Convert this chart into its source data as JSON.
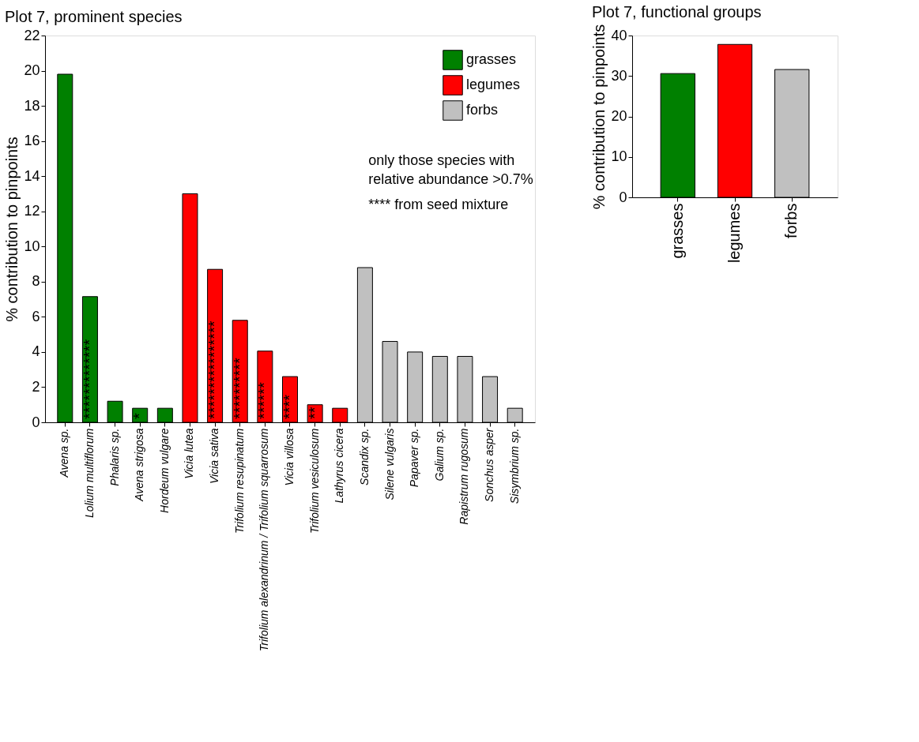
{
  "chart_data": [
    {
      "type": "bar",
      "title": "Plot 7, prominent species",
      "ylabel": "% contribution to pinpoints",
      "categories": [
        "Avena sp.",
        "Lolium multiflorum",
        "Phalaris sp.",
        "Avena strigosa",
        "Hordeum vulgare",
        "Vicia lutea",
        "Vicia sativa",
        "Trifolium resupinatum",
        "Trifolium alexandrinum / Trifolium squarrosum",
        "Vicia villosa",
        "Trifolium vesiculosum",
        "Lathyrus cicera",
        "Scandix sp.",
        "Silene vulgaris",
        "Papaver sp.",
        "Galium sp.",
        "Rapistrum rugosum",
        "Sonchus asper",
        "Sisymbrium sp."
      ],
      "series": [
        {
          "name": "grasses",
          "color": "#008000",
          "values": [
            19.8,
            7.15,
            1.2,
            0.8,
            0.8,
            null,
            null,
            null,
            null,
            null,
            null,
            null,
            null,
            null,
            null,
            null,
            null,
            null,
            null
          ],
          "value_labels": [
            null,
            "*************",
            null,
            "*",
            null,
            null,
            null,
            null,
            null,
            null,
            null,
            null,
            null,
            null,
            null,
            null,
            null,
            null,
            null
          ]
        },
        {
          "name": "legumes",
          "color": "#ff0000",
          "values": [
            null,
            null,
            null,
            null,
            null,
            13.0,
            8.7,
            5.8,
            4.05,
            2.6,
            1.0,
            0.8,
            null,
            null,
            null,
            null,
            null,
            null,
            null
          ],
          "value_labels": [
            null,
            null,
            null,
            null,
            null,
            null,
            "****************",
            "**********",
            "******",
            "****",
            "**",
            null,
            null,
            null,
            null,
            null,
            null,
            null,
            null
          ]
        },
        {
          "name": "forbs",
          "color": "#c0c0c0",
          "values": [
            null,
            null,
            null,
            null,
            null,
            null,
            null,
            null,
            null,
            null,
            null,
            null,
            8.8,
            4.6,
            4.0,
            3.75,
            3.75,
            2.6,
            0.8
          ]
        }
      ],
      "ylim": [
        0,
        22
      ],
      "yticks": [
        0,
        2,
        4,
        6,
        8,
        10,
        12,
        14,
        16,
        18,
        20,
        22
      ],
      "legend": "top right",
      "grid": false,
      "annotations": [
        "only those species with relative abundance >0.7%",
        "**** from seed mixture"
      ]
    },
    {
      "type": "bar",
      "title": "Plot 7, functional groups",
      "ylabel": "% contribution to pinpoints",
      "categories": [
        "grasses",
        "legumes",
        "forbs"
      ],
      "values": [
        30.6,
        37.8,
        31.6
      ],
      "colors": [
        "#008000",
        "#ff0000",
        "#c0c0c0"
      ],
      "ylim": [
        0,
        40
      ],
      "yticks": [
        0,
        10,
        20,
        30,
        40
      ],
      "legend": false,
      "grid": false
    }
  ]
}
